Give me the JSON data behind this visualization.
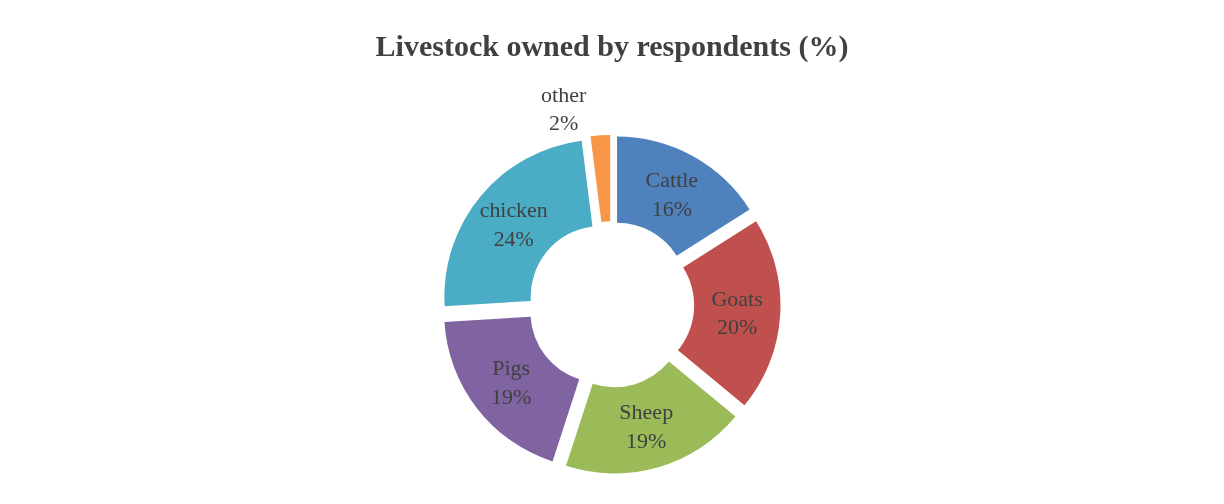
{
  "chart_data": {
    "type": "donut",
    "title": "Livestock owned by respondents (%)",
    "categories": [
      "Cattle",
      "Goats",
      "Sheep",
      "Pigs",
      "chicken",
      "other"
    ],
    "values": [
      16,
      20,
      19,
      19,
      24,
      2
    ],
    "colors": [
      "#4f81bd",
      "#c0504d",
      "#9bbb59",
      "#8064a2",
      "#4bacc6",
      "#f79646"
    ],
    "value_labels": [
      "16%",
      "20%",
      "19%",
      "19%",
      "24%",
      "2%"
    ],
    "legend": false
  }
}
